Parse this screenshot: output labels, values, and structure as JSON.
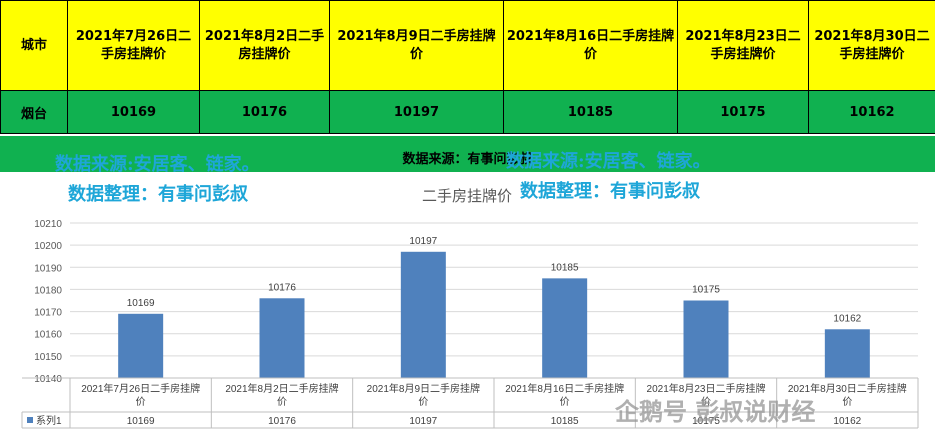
{
  "table": {
    "header_city": "城市",
    "headers": [
      "2021年7月26日二手房挂牌价",
      "2021年8月2日二手房挂牌价",
      "2021年8月9日二手房挂牌价",
      "2021年8月16日二手房挂牌价",
      "2021年8月23日二手房挂牌价",
      "2021年8月30日二手房挂牌价"
    ],
    "city": "烟台",
    "values": [
      "10169",
      "10176",
      "10197",
      "10185",
      "10175",
      "10162"
    ]
  },
  "band": {
    "source": "数据来源：有事问彭叔"
  },
  "watermarks": {
    "source_left": "数据来源:安居客、链家。",
    "source_right": "数据来源:安居客、链家。",
    "compiler_left": "数据整理：有事问彭叔",
    "compiler_right": "数据整理：有事问彭叔",
    "footer": "企鹅号 彭叔说财经"
  },
  "colors": {
    "yellow": "#ffff00",
    "green": "#10b150",
    "bar": "#4f81bd",
    "watermark": "#1ea6d8"
  },
  "chart_data": {
    "type": "bar",
    "title": "二手房挂牌价",
    "categories": [
      "2021年7月26日二手房挂牌价",
      "2021年8月2日二手房挂牌价",
      "2021年8月9日二手房挂牌价",
      "2021年8月16日二手房挂牌价",
      "2021年8月23日二手房挂牌价",
      "2021年8月30日二手房挂牌价"
    ],
    "series": [
      {
        "name": "系列1",
        "values": [
          10169,
          10176,
          10197,
          10185,
          10175,
          10162
        ]
      }
    ],
    "ylim": [
      10140,
      10210
    ],
    "yticks": [
      10140,
      10150,
      10160,
      10170,
      10180,
      10190,
      10200,
      10210
    ],
    "data_labels": true,
    "data_table": true,
    "grid": true
  }
}
